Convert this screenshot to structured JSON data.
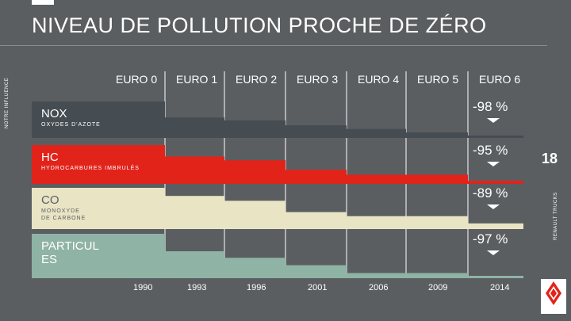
{
  "title": "NIVEAU DE POLLUTION PROCHE DE ZÉRO",
  "side_top_text": "NOTRE INFLUENCE",
  "page_number": "18",
  "side_bottom_text": "RENAULT TRUCKS",
  "logo_text": "RENAULT TRUCKS",
  "colors": {
    "background": "#5b5e61",
    "nox": "#454c52",
    "hc": "#e2231a",
    "co": "#e9e4c4",
    "part": "#8fb3a4"
  },
  "chart_data": {
    "type": "bar",
    "categories": [
      "EURO 0",
      "EURO 1",
      "EURO 2",
      "EURO 3",
      "EURO 4",
      "EURO 5",
      "EURO 6"
    ],
    "years": [
      "1990",
      "1993",
      "1996",
      "2001",
      "2006",
      "2009",
      "2014"
    ],
    "series": [
      {
        "name": "NOX",
        "subtitle": "OXYDES D'AZOTE",
        "reduction": "-98 %",
        "values": [
          100,
          55,
          47,
          33,
          23,
          13,
          3
        ]
      },
      {
        "name": "HC",
        "subtitle": "HYDROCARBURES IMBRULÉS",
        "reduction": "-95 %",
        "values": [
          100,
          70,
          60,
          35,
          22,
          22,
          6
        ]
      },
      {
        "name": "CO",
        "subtitle": "MONOXYDE DE CARBONE",
        "reduction": "-89 %",
        "values": [
          100,
          80,
          68,
          40,
          30,
          30,
          12
        ]
      },
      {
        "name": "PARTICULES",
        "subtitle": "",
        "reduction": "-97 %",
        "values": [
          100,
          60,
          45,
          28,
          10,
          10,
          3
        ]
      }
    ]
  }
}
